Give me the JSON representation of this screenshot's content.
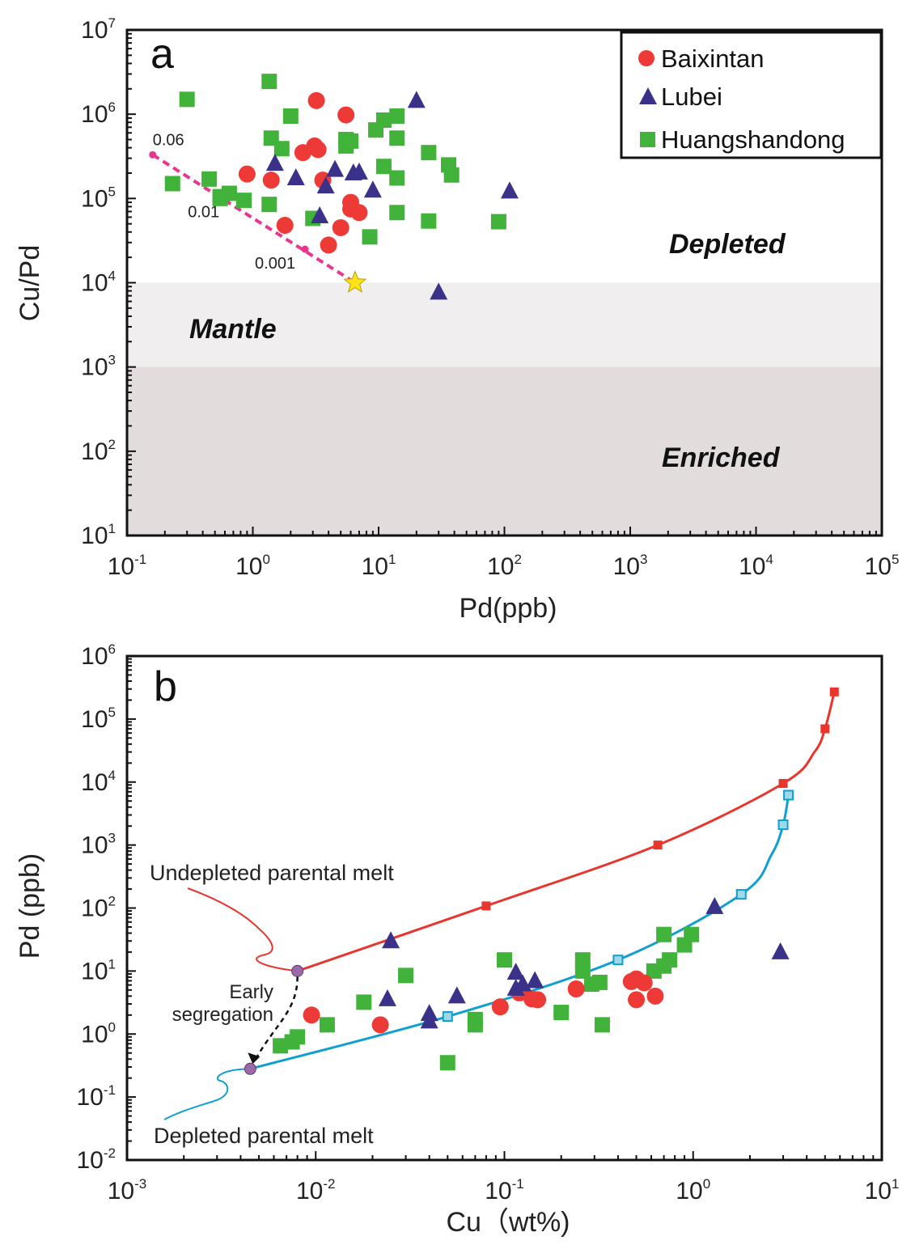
{
  "colors": {
    "baixintan": "#ee3a36",
    "lubei": "#3a3288",
    "huangshandong": "#41b33b",
    "mix_line": "#e8378f",
    "undepleted": "#e8352d",
    "depleted": "#119fd0",
    "depleted_marker_fill": "#9fd8e8",
    "mantle_band": "#f0eeee",
    "enriched_band": "#e2dcdc",
    "star": "#ffe31a",
    "endpoint": "#9a6aa8"
  },
  "chart_data": [
    {
      "id": "a",
      "type": "scatter",
      "panel_label": "a",
      "xlabel": "Pd(ppb)",
      "ylabel": "Cu/Pd",
      "xscale": "log",
      "yscale": "log",
      "xlim": [
        0.1,
        100000
      ],
      "ylim": [
        10,
        10000000
      ],
      "x_ticks": [
        {
          "value": 0.1,
          "base": "10",
          "exp": "-1"
        },
        {
          "value": 1,
          "base": "10",
          "exp": "0"
        },
        {
          "value": 10,
          "base": "10",
          "exp": "1"
        },
        {
          "value": 100,
          "base": "10",
          "exp": "2"
        },
        {
          "value": 1000,
          "base": "10",
          "exp": "3"
        },
        {
          "value": 10000,
          "base": "10",
          "exp": "4"
        },
        {
          "value": 100000,
          "base": "10",
          "exp": "5"
        }
      ],
      "y_ticks": [
        {
          "value": 10,
          "base": "10",
          "exp": "1"
        },
        {
          "value": 100,
          "base": "10",
          "exp": "2"
        },
        {
          "value": 1000,
          "base": "10",
          "exp": "3"
        },
        {
          "value": 10000,
          "base": "10",
          "exp": "4"
        },
        {
          "value": 100000,
          "base": "10",
          "exp": "5"
        },
        {
          "value": 1000000,
          "base": "10",
          "exp": "6"
        },
        {
          "value": 10000000,
          "base": "10",
          "exp": "7"
        }
      ],
      "regions": [
        {
          "name": "Mantle",
          "y_from": 1000,
          "y_to": 10000,
          "label_x": 1.0,
          "label_y": 3500
        },
        {
          "name": "Enriched",
          "y_from": 10,
          "y_to": 1000,
          "label_x": 1800,
          "label_y": 120
        }
      ],
      "region_labels": [
        {
          "text": "Depleted",
          "x": 1800,
          "y": 40000
        },
        {
          "text": "Mantle",
          "x": 0.55,
          "y": 3500
        },
        {
          "text": "Enriched",
          "x": 1500,
          "y": 120
        }
      ],
      "legend": {
        "position": "top-right",
        "entries": [
          {
            "label": "Baixintan",
            "marker": "circle",
            "series": "baixintan"
          },
          {
            "label": "Lubei",
            "marker": "triangle",
            "series": "lubei"
          },
          {
            "label": "Huangshandong",
            "marker": "square",
            "series": "huangshandong"
          }
        ]
      },
      "series": [
        {
          "name": "Baixintan",
          "key": "baixintan",
          "marker": "circle",
          "points": [
            [
              3.2,
              1450000
            ],
            [
              5.5,
              980000
            ],
            [
              3.1,
              420000
            ],
            [
              3.3,
              380000
            ],
            [
              2.5,
              350000
            ],
            [
              0.9,
              195000
            ],
            [
              1.4,
              165000
            ],
            [
              3.6,
              165000
            ],
            [
              6.0,
              90000
            ],
            [
              6.0,
              75000
            ],
            [
              7.0,
              68000
            ],
            [
              1.8,
              48000
            ],
            [
              5.0,
              45000
            ],
            [
              4.0,
              28000
            ]
          ]
        },
        {
          "name": "Lubei",
          "key": "lubei",
          "marker": "triangle",
          "points": [
            [
              20,
              1450000
            ],
            [
              1.5,
              260000
            ],
            [
              2.2,
              175000
            ],
            [
              4.5,
              220000
            ],
            [
              6.3,
              200000
            ],
            [
              7.0,
              205000
            ],
            [
              3.8,
              140000
            ],
            [
              9.0,
              125000
            ],
            [
              3.4,
              62000
            ],
            [
              110,
              122000
            ],
            [
              30,
              7700
            ]
          ]
        },
        {
          "name": "Huangshandong",
          "key": "huangshandong",
          "marker": "square",
          "points": [
            [
              1.35,
              2450000
            ],
            [
              0.3,
              1500000
            ],
            [
              2.0,
              950000
            ],
            [
              11,
              850000
            ],
            [
              14,
              950000
            ],
            [
              9.5,
              650000
            ],
            [
              1.4,
              520000
            ],
            [
              5.5,
              500000
            ],
            [
              6.0,
              480000
            ],
            [
              14,
              520000
            ],
            [
              5.5,
              420000
            ],
            [
              1.7,
              390000
            ],
            [
              25,
              350000
            ],
            [
              36,
              250000
            ],
            [
              38,
              190000
            ],
            [
              11,
              240000
            ],
            [
              14,
              175000
            ],
            [
              0.45,
              170000
            ],
            [
              0.23,
              150000
            ],
            [
              0.55,
              105000
            ],
            [
              0.65,
              115000
            ],
            [
              0.85,
              95000
            ],
            [
              1.35,
              85000
            ],
            [
              14,
              68000
            ],
            [
              25,
              54000
            ],
            [
              90,
              53000
            ],
            [
              8.5,
              35000
            ],
            [
              3.0,
              58000
            ],
            [
              0.55,
              100000
            ]
          ]
        }
      ],
      "mixing_line": {
        "points": [
          [
            0.16,
            330000
          ],
          [
            6.5,
            10000
          ]
        ],
        "ticks": [
          [
            0.16,
            330000
          ],
          [
            0.62,
            97000
          ],
          [
            2.6,
            25000
          ]
        ],
        "labels": [
          {
            "text": "0.06",
            "x": 0.16,
            "y": 330000
          },
          {
            "text": "0.01",
            "x": 0.62,
            "y": 97000
          },
          {
            "text": "0.001",
            "x": 2.6,
            "y": 25000
          }
        ]
      },
      "star_point": [
        6.5,
        10000
      ]
    },
    {
      "id": "b",
      "type": "scatter",
      "panel_label": "b",
      "xlabel": "Cu（wt%)",
      "ylabel": "Pd (ppb)",
      "xscale": "log",
      "yscale": "log",
      "xlim": [
        0.001,
        10
      ],
      "ylim": [
        0.01,
        1000000
      ],
      "x_ticks": [
        {
          "value": 0.001,
          "base": "10",
          "exp": "-3"
        },
        {
          "value": 0.01,
          "base": "10",
          "exp": "-2"
        },
        {
          "value": 0.1,
          "base": "10",
          "exp": "-1"
        },
        {
          "value": 1,
          "base": "10",
          "exp": "0"
        },
        {
          "value": 10,
          "base": "10",
          "exp": "1"
        }
      ],
      "y_ticks": [
        {
          "value": 0.01,
          "base": "10",
          "exp": "-2"
        },
        {
          "value": 0.1,
          "base": "10",
          "exp": "-1"
        },
        {
          "value": 1,
          "base": "10",
          "exp": "0"
        },
        {
          "value": 10,
          "base": "10",
          "exp": "1"
        },
        {
          "value": 100,
          "base": "10",
          "exp": "2"
        },
        {
          "value": 1000,
          "base": "10",
          "exp": "3"
        },
        {
          "value": 10000,
          "base": "10",
          "exp": "4"
        },
        {
          "value": 100000,
          "base": "10",
          "exp": "5"
        },
        {
          "value": 1000000,
          "base": "10",
          "exp": "6"
        }
      ],
      "series": [
        {
          "name": "Baixintan",
          "key": "baixintan",
          "marker": "circle",
          "points": [
            [
              0.0095,
              2.0
            ],
            [
              0.022,
              1.4
            ],
            [
              0.095,
              2.7
            ],
            [
              0.12,
              4.5
            ],
            [
              0.14,
              3.6
            ],
            [
              0.15,
              3.5
            ],
            [
              0.24,
              5.2
            ],
            [
              0.47,
              6.8
            ],
            [
              0.5,
              7.5
            ],
            [
              0.55,
              6.5
            ],
            [
              0.5,
              3.5
            ],
            [
              0.63,
              4.0
            ]
          ]
        },
        {
          "name": "Lubei",
          "key": "lubei",
          "marker": "triangle",
          "points": [
            [
              0.025,
              30
            ],
            [
              0.024,
              3.6
            ],
            [
              0.04,
              2.1
            ],
            [
              0.04,
              1.6
            ],
            [
              0.056,
              4.0
            ],
            [
              0.115,
              9.5
            ],
            [
              0.115,
              5.3
            ],
            [
              0.125,
              6.2
            ],
            [
              0.145,
              7.0
            ],
            [
              1.3,
              105
            ],
            [
              2.9,
              20
            ]
          ]
        },
        {
          "name": "Huangshandong",
          "key": "huangshandong",
          "marker": "square",
          "points": [
            [
              0.0065,
              0.65
            ],
            [
              0.0075,
              0.75
            ],
            [
              0.008,
              0.9
            ],
            [
              0.0115,
              1.4
            ],
            [
              0.018,
              3.2
            ],
            [
              0.03,
              8.5
            ],
            [
              0.05,
              0.35
            ],
            [
              0.07,
              1.7
            ],
            [
              0.07,
              1.4
            ],
            [
              0.1,
              15
            ],
            [
              0.2,
              2.2
            ],
            [
              0.26,
              15
            ],
            [
              0.26,
              10
            ],
            [
              0.29,
              6.2
            ],
            [
              0.32,
              6.6
            ],
            [
              0.33,
              1.4
            ],
            [
              0.62,
              10
            ],
            [
              0.7,
              38
            ],
            [
              0.75,
              15
            ],
            [
              0.9,
              26
            ],
            [
              0.98,
              38
            ],
            [
              0.7,
              12
            ]
          ]
        }
      ],
      "curves": [
        {
          "name": "Undepleted parental melt",
          "key": "undepleted",
          "points": [
            [
              0.008,
              10
            ],
            [
              0.08,
              108
            ],
            [
              0.65,
              1000
            ],
            [
              3.0,
              9500
            ],
            [
              4.4,
              30000
            ],
            [
              5.0,
              70000
            ],
            [
              5.6,
              270000
            ]
          ],
          "markers": [
            [
              0.08,
              108
            ],
            [
              0.65,
              1000
            ],
            [
              3.0,
              9500
            ],
            [
              5.0,
              70000
            ],
            [
              5.6,
              270000
            ]
          ],
          "label": "Undepleted parental melt"
        },
        {
          "name": "Depleted parental melt",
          "key": "depleted",
          "points": [
            [
              0.0045,
              0.28
            ],
            [
              0.05,
              1.9
            ],
            [
              0.4,
              15
            ],
            [
              1.8,
              165
            ],
            [
              2.6,
              700
            ],
            [
              3.0,
              2100
            ],
            [
              3.2,
              6200
            ]
          ],
          "markers": [
            [
              0.05,
              1.9
            ],
            [
              0.4,
              15
            ],
            [
              1.8,
              165
            ],
            [
              3.0,
              2100
            ],
            [
              3.2,
              6200
            ]
          ],
          "label": "Depleted parental melt"
        }
      ],
      "endpoints": [
        [
          0.008,
          10
        ],
        [
          0.0045,
          0.28
        ]
      ],
      "annotation": {
        "line1": "Early",
        "line2": "segregation"
      }
    }
  ]
}
